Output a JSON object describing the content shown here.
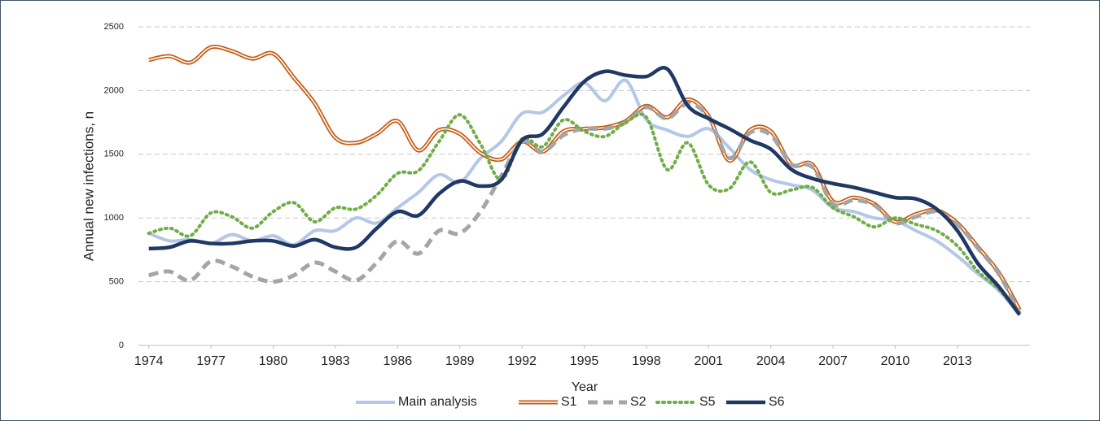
{
  "chart_data": {
    "type": "line",
    "x_label": "Year",
    "y_label": "Annual new infections, n",
    "x": [
      1974,
      1975,
      1976,
      1977,
      1978,
      1979,
      1980,
      1981,
      1982,
      1983,
      1984,
      1985,
      1986,
      1987,
      1988,
      1989,
      1990,
      1991,
      1992,
      1993,
      1994,
      1995,
      1996,
      1997,
      1998,
      1999,
      2000,
      2001,
      2002,
      2003,
      2004,
      2005,
      2006,
      2007,
      2008,
      2009,
      2010,
      2011,
      2012,
      2013,
      2014,
      2015,
      2016
    ],
    "xlim": [
      1973.5,
      2016.5
    ],
    "xticks": [
      1974,
      1977,
      1980,
      1983,
      1986,
      1989,
      1992,
      1995,
      1998,
      2001,
      2004,
      2007,
      2010,
      2013
    ],
    "ylim": [
      0,
      2500
    ],
    "yticks": [
      0,
      500,
      1000,
      1500,
      2000,
      2500
    ],
    "grid": true,
    "legend": "bottom",
    "series": [
      {
        "name": "Main analysis",
        "color": "#b4c7e7",
        "values": [
          880,
          820,
          830,
          800,
          870,
          820,
          860,
          790,
          900,
          900,
          1000,
          960,
          1080,
          1200,
          1340,
          1280,
          1470,
          1600,
          1820,
          1830,
          1960,
          2060,
          1920,
          2080,
          1770,
          1690,
          1640,
          1700,
          1550,
          1380,
          1300,
          1260,
          1220,
          1080,
          1050,
          1000,
          980,
          900,
          820,
          700,
          560,
          430,
          240
        ]
      },
      {
        "name": "S1",
        "color": "#c55a11",
        "values": [
          2240,
          2270,
          2220,
          2340,
          2310,
          2250,
          2290,
          2100,
          1900,
          1630,
          1590,
          1660,
          1760,
          1530,
          1690,
          1660,
          1510,
          1460,
          1600,
          1520,
          1680,
          1700,
          1710,
          1760,
          1880,
          1790,
          1930,
          1800,
          1450,
          1690,
          1680,
          1420,
          1420,
          1130,
          1160,
          1110,
          970,
          1030,
          1060,
          960,
          770,
          570,
          280
        ]
      },
      {
        "name": "S2",
        "color": "#a5a5a5",
        "values": [
          550,
          580,
          510,
          660,
          620,
          540,
          500,
          550,
          650,
          580,
          510,
          650,
          820,
          720,
          900,
          880,
          1050,
          1330,
          1600,
          1520,
          1650,
          1700,
          1700,
          1750,
          1870,
          1780,
          1900,
          1790,
          1470,
          1670,
          1650,
          1420,
          1400,
          1110,
          1140,
          1100,
          960,
          1010,
          1050,
          950,
          760,
          560,
          250
        ]
      },
      {
        "name": "S5",
        "color": "#70ad47",
        "values": [
          880,
          920,
          860,
          1040,
          1010,
          920,
          1050,
          1120,
          970,
          1080,
          1070,
          1180,
          1350,
          1370,
          1600,
          1810,
          1580,
          1300,
          1620,
          1560,
          1770,
          1680,
          1640,
          1750,
          1790,
          1380,
          1590,
          1260,
          1230,
          1440,
          1200,
          1220,
          1240,
          1080,
          1010,
          930,
          1000,
          950,
          900,
          780,
          580,
          440,
          250
        ]
      },
      {
        "name": "S6",
        "color": "#203864",
        "values": [
          760,
          770,
          820,
          800,
          800,
          820,
          820,
          780,
          830,
          770,
          770,
          920,
          1050,
          1020,
          1190,
          1290,
          1250,
          1300,
          1610,
          1660,
          1870,
          2070,
          2150,
          2120,
          2110,
          2170,
          1880,
          1780,
          1700,
          1610,
          1540,
          1380,
          1310,
          1270,
          1240,
          1200,
          1160,
          1150,
          1070,
          900,
          640,
          460,
          240
        ]
      }
    ]
  }
}
